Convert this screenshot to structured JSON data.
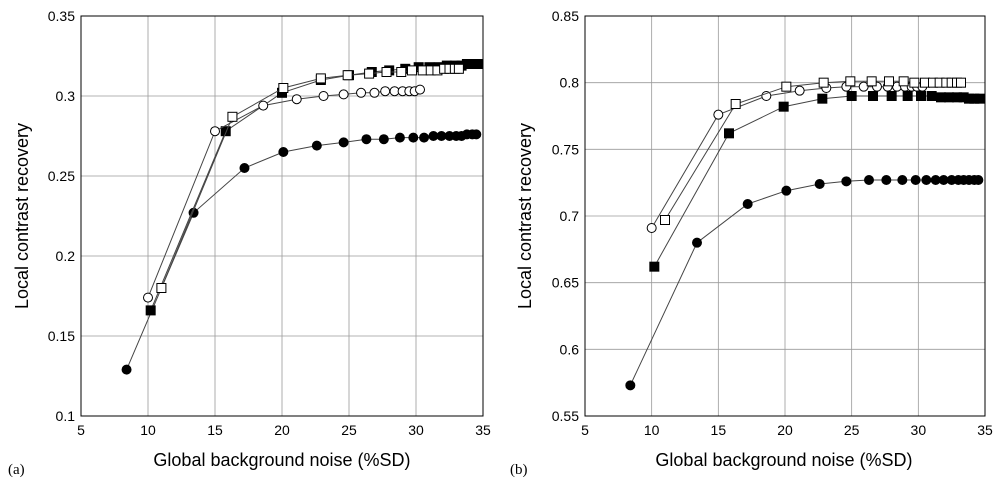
{
  "chart_data": [
    {
      "type": "line",
      "panel_label": "(a)",
      "xlabel": "Global background noise (%SD)",
      "ylabel": "Local contrast recovery",
      "xlim": [
        5,
        35
      ],
      "ylim": [
        0.1,
        0.35
      ],
      "xticks": [
        5,
        10,
        15,
        20,
        25,
        30,
        35
      ],
      "yticks": [
        0.1,
        0.15,
        0.2,
        0.25,
        0.3,
        0.35
      ],
      "ytick_labels": [
        "0.1",
        "0.15",
        "0.2",
        "0.25",
        "0.3",
        "0.35"
      ],
      "grid": true,
      "series": [
        {
          "marker": "filled-circle",
          "x": [
            8.4,
            13.4,
            17.2,
            20.1,
            22.6,
            24.6,
            26.3,
            27.6,
            28.8,
            29.8,
            30.6,
            31.3,
            31.9,
            32.5,
            33.0,
            33.4,
            33.8,
            34.2,
            34.5
          ],
          "y": [
            0.129,
            0.227,
            0.255,
            0.265,
            0.269,
            0.271,
            0.273,
            0.273,
            0.274,
            0.274,
            0.274,
            0.275,
            0.275,
            0.275,
            0.275,
            0.275,
            0.276,
            0.276,
            0.276
          ]
        },
        {
          "marker": "filled-square",
          "x": [
            10.2,
            15.8,
            20.0,
            22.9,
            25.0,
            26.7,
            28.0,
            29.2,
            30.2,
            31.0,
            31.7,
            32.3,
            32.9,
            33.4,
            33.8,
            34.2,
            34.6
          ],
          "y": [
            0.166,
            0.278,
            0.302,
            0.31,
            0.313,
            0.315,
            0.316,
            0.317,
            0.318,
            0.318,
            0.318,
            0.319,
            0.319,
            0.319,
            0.32,
            0.32,
            0.32
          ]
        },
        {
          "marker": "open-circle",
          "x": [
            10.0,
            15.0,
            18.6,
            21.1,
            23.1,
            24.6,
            25.9,
            26.9,
            27.7,
            28.4,
            29.0,
            29.5,
            29.9,
            30.3
          ],
          "y": [
            0.174,
            0.278,
            0.294,
            0.298,
            0.3,
            0.301,
            0.302,
            0.302,
            0.303,
            0.303,
            0.303,
            0.303,
            0.303,
            0.304
          ]
        },
        {
          "marker": "open-square",
          "x": [
            11.0,
            16.3,
            20.1,
            22.9,
            24.9,
            26.5,
            27.8,
            28.9,
            29.7,
            30.5,
            31.1,
            31.6,
            32.1,
            32.5,
            32.9,
            33.2
          ],
          "y": [
            0.18,
            0.287,
            0.305,
            0.311,
            0.313,
            0.314,
            0.315,
            0.315,
            0.316,
            0.316,
            0.316,
            0.316,
            0.317,
            0.317,
            0.317,
            0.317
          ]
        }
      ]
    },
    {
      "type": "line",
      "panel_label": "(b)",
      "xlabel": "Global background noise (%SD)",
      "ylabel": "Local contrast recovery",
      "xlim": [
        5,
        35
      ],
      "ylim": [
        0.55,
        0.85
      ],
      "xticks": [
        5,
        10,
        15,
        20,
        25,
        30,
        35
      ],
      "yticks": [
        0.55,
        0.6,
        0.65,
        0.7,
        0.75,
        0.8,
        0.85
      ],
      "ytick_labels": [
        "0.55",
        "0.6",
        "0.65",
        "0.7",
        "0.75",
        "0.8",
        "0.85"
      ],
      "grid": true,
      "series": [
        {
          "marker": "filled-circle",
          "x": [
            8.4,
            13.4,
            17.2,
            20.1,
            22.6,
            24.6,
            26.3,
            27.6,
            28.8,
            29.8,
            30.6,
            31.3,
            31.9,
            32.5,
            33.0,
            33.4,
            33.8,
            34.2,
            34.5
          ],
          "y": [
            0.573,
            0.68,
            0.709,
            0.719,
            0.724,
            0.726,
            0.727,
            0.727,
            0.727,
            0.727,
            0.727,
            0.727,
            0.727,
            0.727,
            0.727,
            0.727,
            0.727,
            0.727,
            0.727
          ]
        },
        {
          "marker": "filled-square",
          "x": [
            10.2,
            15.8,
            19.9,
            22.8,
            25.0,
            26.6,
            28.0,
            29.2,
            30.2,
            31.0,
            31.7,
            32.3,
            32.9,
            33.4,
            33.8,
            34.2,
            34.6
          ],
          "y": [
            0.662,
            0.762,
            0.782,
            0.788,
            0.79,
            0.79,
            0.79,
            0.79,
            0.79,
            0.79,
            0.789,
            0.789,
            0.789,
            0.789,
            0.788,
            0.788,
            0.788
          ]
        },
        {
          "marker": "open-circle",
          "x": [
            10.0,
            15.0,
            18.6,
            21.1,
            23.1,
            24.6,
            25.9,
            26.9,
            27.7,
            28.4,
            29.0,
            29.5,
            29.9,
            30.3
          ],
          "y": [
            0.691,
            0.776,
            0.79,
            0.794,
            0.796,
            0.797,
            0.797,
            0.797,
            0.797,
            0.797,
            0.797,
            0.797,
            0.797,
            0.797
          ]
        },
        {
          "marker": "open-square",
          "x": [
            11.0,
            16.3,
            20.1,
            22.9,
            24.9,
            26.5,
            27.8,
            28.9,
            29.7,
            30.5,
            31.1,
            31.6,
            32.1,
            32.5,
            32.9,
            33.2
          ],
          "y": [
            0.697,
            0.784,
            0.797,
            0.8,
            0.801,
            0.801,
            0.801,
            0.801,
            0.8,
            0.8,
            0.8,
            0.8,
            0.8,
            0.8,
            0.8,
            0.8
          ]
        }
      ]
    }
  ],
  "colors": {
    "line": "#444444",
    "grid": "#9a9a9a",
    "marker_fill": "#000000",
    "marker_open_fill": "#ffffff"
  }
}
